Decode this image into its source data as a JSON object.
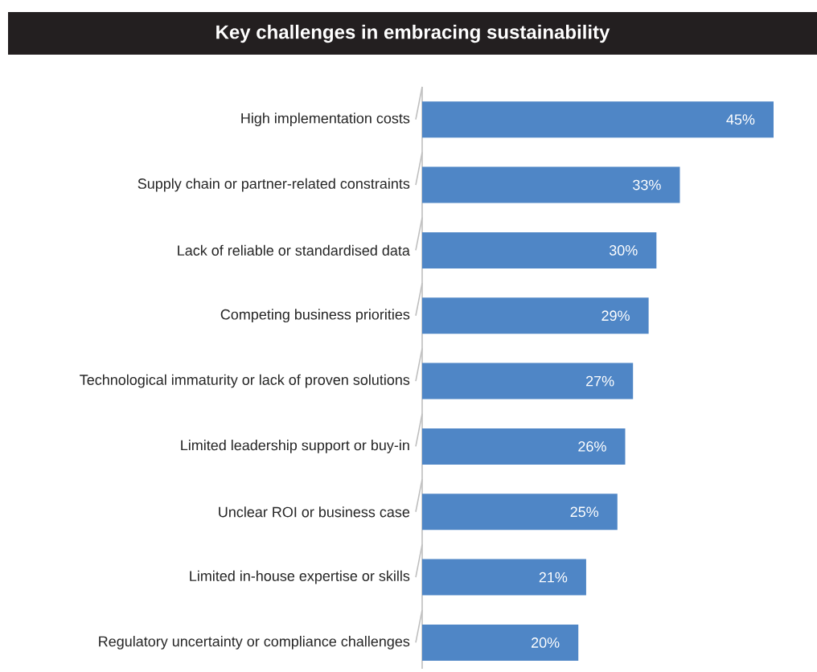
{
  "chart_data": {
    "type": "bar",
    "orientation": "horizontal",
    "title": "Key challenges in embracing sustainability",
    "categories": [
      "High implementation costs",
      "Supply chain or partner-related constraints",
      "Lack of reliable or standardised data",
      "Competing business priorities",
      "Technological immaturity or lack of proven solutions",
      "Limited leadership support or buy-in",
      "Unclear ROI or business case",
      "Limited in-house expertise or skills",
      "Regulatory uncertainty or compliance challenges"
    ],
    "values": [
      45,
      33,
      30,
      29,
      27,
      26,
      25,
      21,
      20
    ],
    "value_labels": [
      "45%",
      "33%",
      "30%",
      "29%",
      "27%",
      "26%",
      "25%",
      "21%",
      "20%"
    ],
    "color": "#4f86c6"
  }
}
